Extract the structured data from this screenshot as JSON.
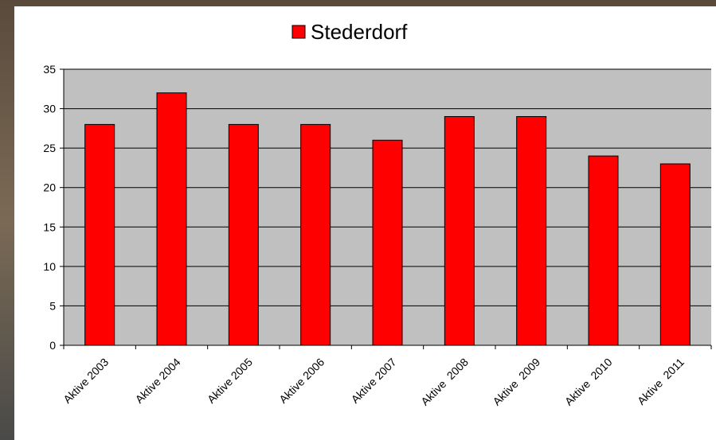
{
  "chart_data": {
    "type": "bar",
    "categories": [
      "Aktive 2003",
      "Aktive 2004",
      "Aktive 2005",
      "Aktive 2006",
      "Aktive 2007",
      "Aktive  2008",
      "Aktive  2009",
      "Aktive  2010",
      "Aktive  2011"
    ],
    "series": [
      {
        "name": "Stederdorf",
        "color": "#ff0000",
        "values": [
          28,
          32,
          28,
          28,
          26,
          29,
          29,
          24,
          23
        ]
      }
    ],
    "ylim": [
      0,
      35
    ],
    "yticks": [
      0,
      5,
      10,
      15,
      20,
      25,
      30,
      35
    ],
    "grid": true,
    "legend": "top"
  }
}
